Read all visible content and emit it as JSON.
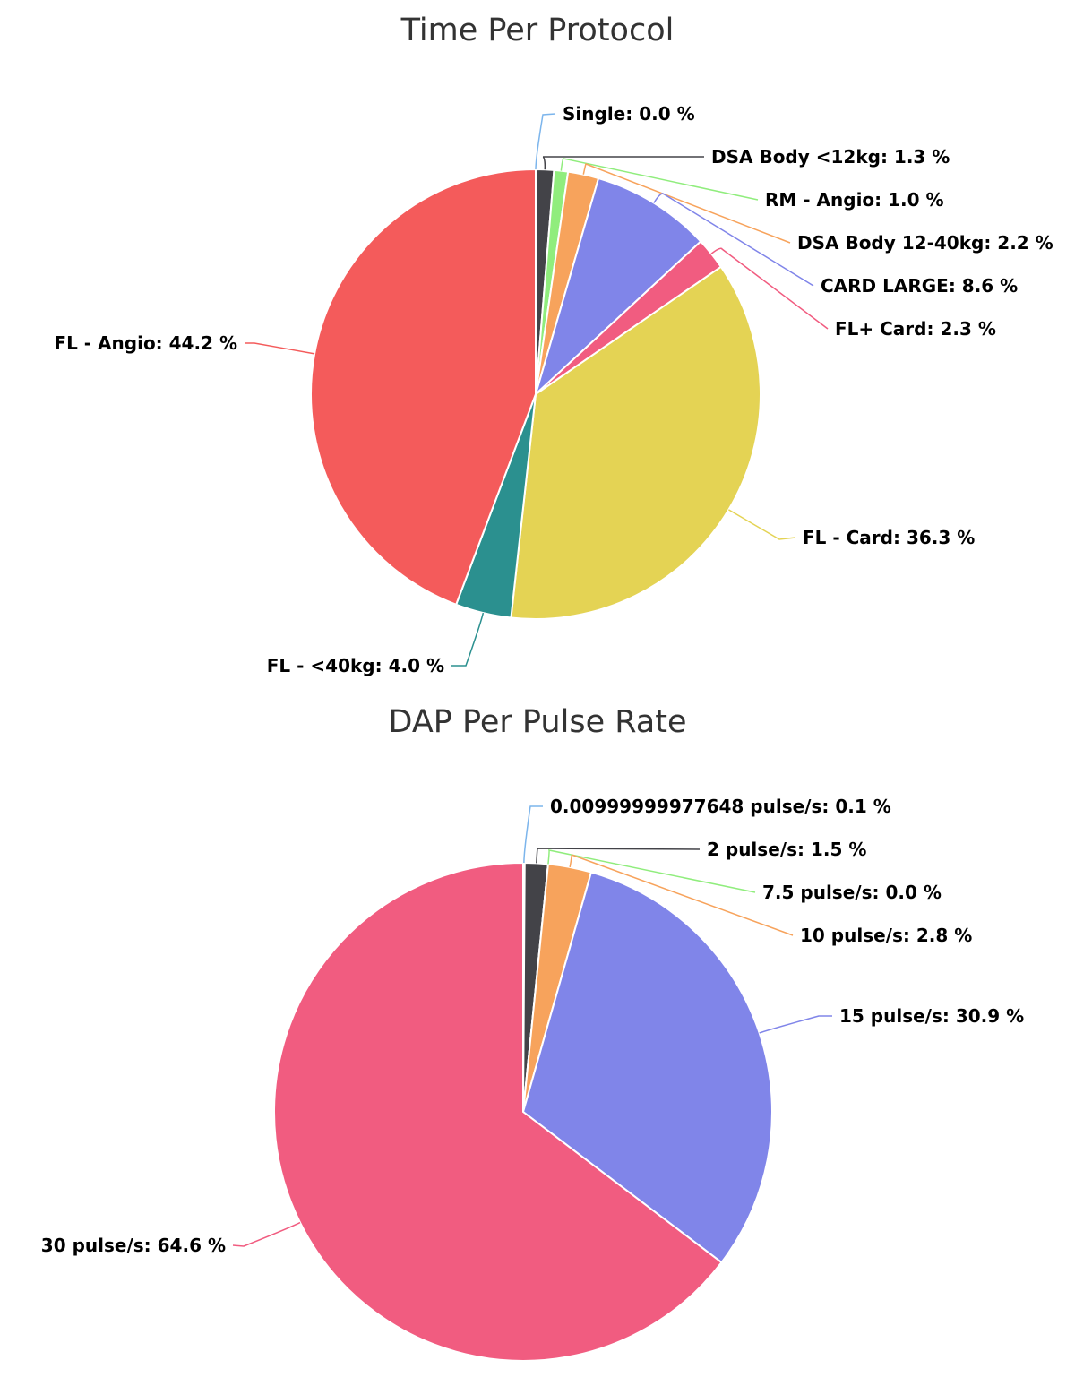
{
  "chart_data": [
    {
      "type": "pie",
      "title": "Time Per Protocol",
      "slices": [
        {
          "name": "Single",
          "label": "Single: 0.0 %",
          "value": 0.0,
          "color": "#7cb5ec"
        },
        {
          "name": "DSA Body <12kg",
          "label": "DSA Body <12kg: 1.3 %",
          "value": 1.3,
          "color": "#434348"
        },
        {
          "name": "RM - Angio",
          "label": "RM - Angio: 1.0 %",
          "value": 1.0,
          "color": "#90ed7d"
        },
        {
          "name": "DSA Body 12-40kg",
          "label": "DSA Body 12-40kg: 2.2 %",
          "value": 2.2,
          "color": "#f7a35c"
        },
        {
          "name": "CARD LARGE",
          "label": "CARD LARGE: 8.6 %",
          "value": 8.6,
          "color": "#8085e9"
        },
        {
          "name": "FL+ Card",
          "label": "FL+ Card: 2.3 %",
          "value": 2.3,
          "color": "#f15c80"
        },
        {
          "name": "FL - Card",
          "label": "FL - Card: 36.3 %",
          "value": 36.3,
          "color": "#e4d354"
        },
        {
          "name": "FL - <40kg",
          "label": "FL - <40kg: 4.0 %",
          "value": 4.0,
          "color": "#2b908f"
        },
        {
          "name": "FL - Angio",
          "label": "FL - Angio: 44.2 %",
          "value": 44.2,
          "color": "#f45b5b"
        }
      ]
    },
    {
      "type": "pie",
      "title": "DAP Per Pulse Rate",
      "slices": [
        {
          "name": "0.00999999977648 pulse/s",
          "label": "0.00999999977648 pulse/s: 0.1 %",
          "value": 0.1,
          "color": "#7cb5ec"
        },
        {
          "name": "2 pulse/s",
          "label": "2 pulse/s: 1.5 %",
          "value": 1.5,
          "color": "#434348"
        },
        {
          "name": "7.5 pulse/s",
          "label": "7.5 pulse/s: 0.0 %",
          "value": 0.0,
          "color": "#90ed7d"
        },
        {
          "name": "10 pulse/s",
          "label": "10 pulse/s: 2.8 %",
          "value": 2.8,
          "color": "#f7a35c"
        },
        {
          "name": "15 pulse/s",
          "label": "15 pulse/s: 30.9 %",
          "value": 30.9,
          "color": "#8085e9"
        },
        {
          "name": "30 pulse/s",
          "label": "30 pulse/s: 64.6 %",
          "value": 64.6,
          "color": "#f15c80"
        }
      ]
    }
  ]
}
